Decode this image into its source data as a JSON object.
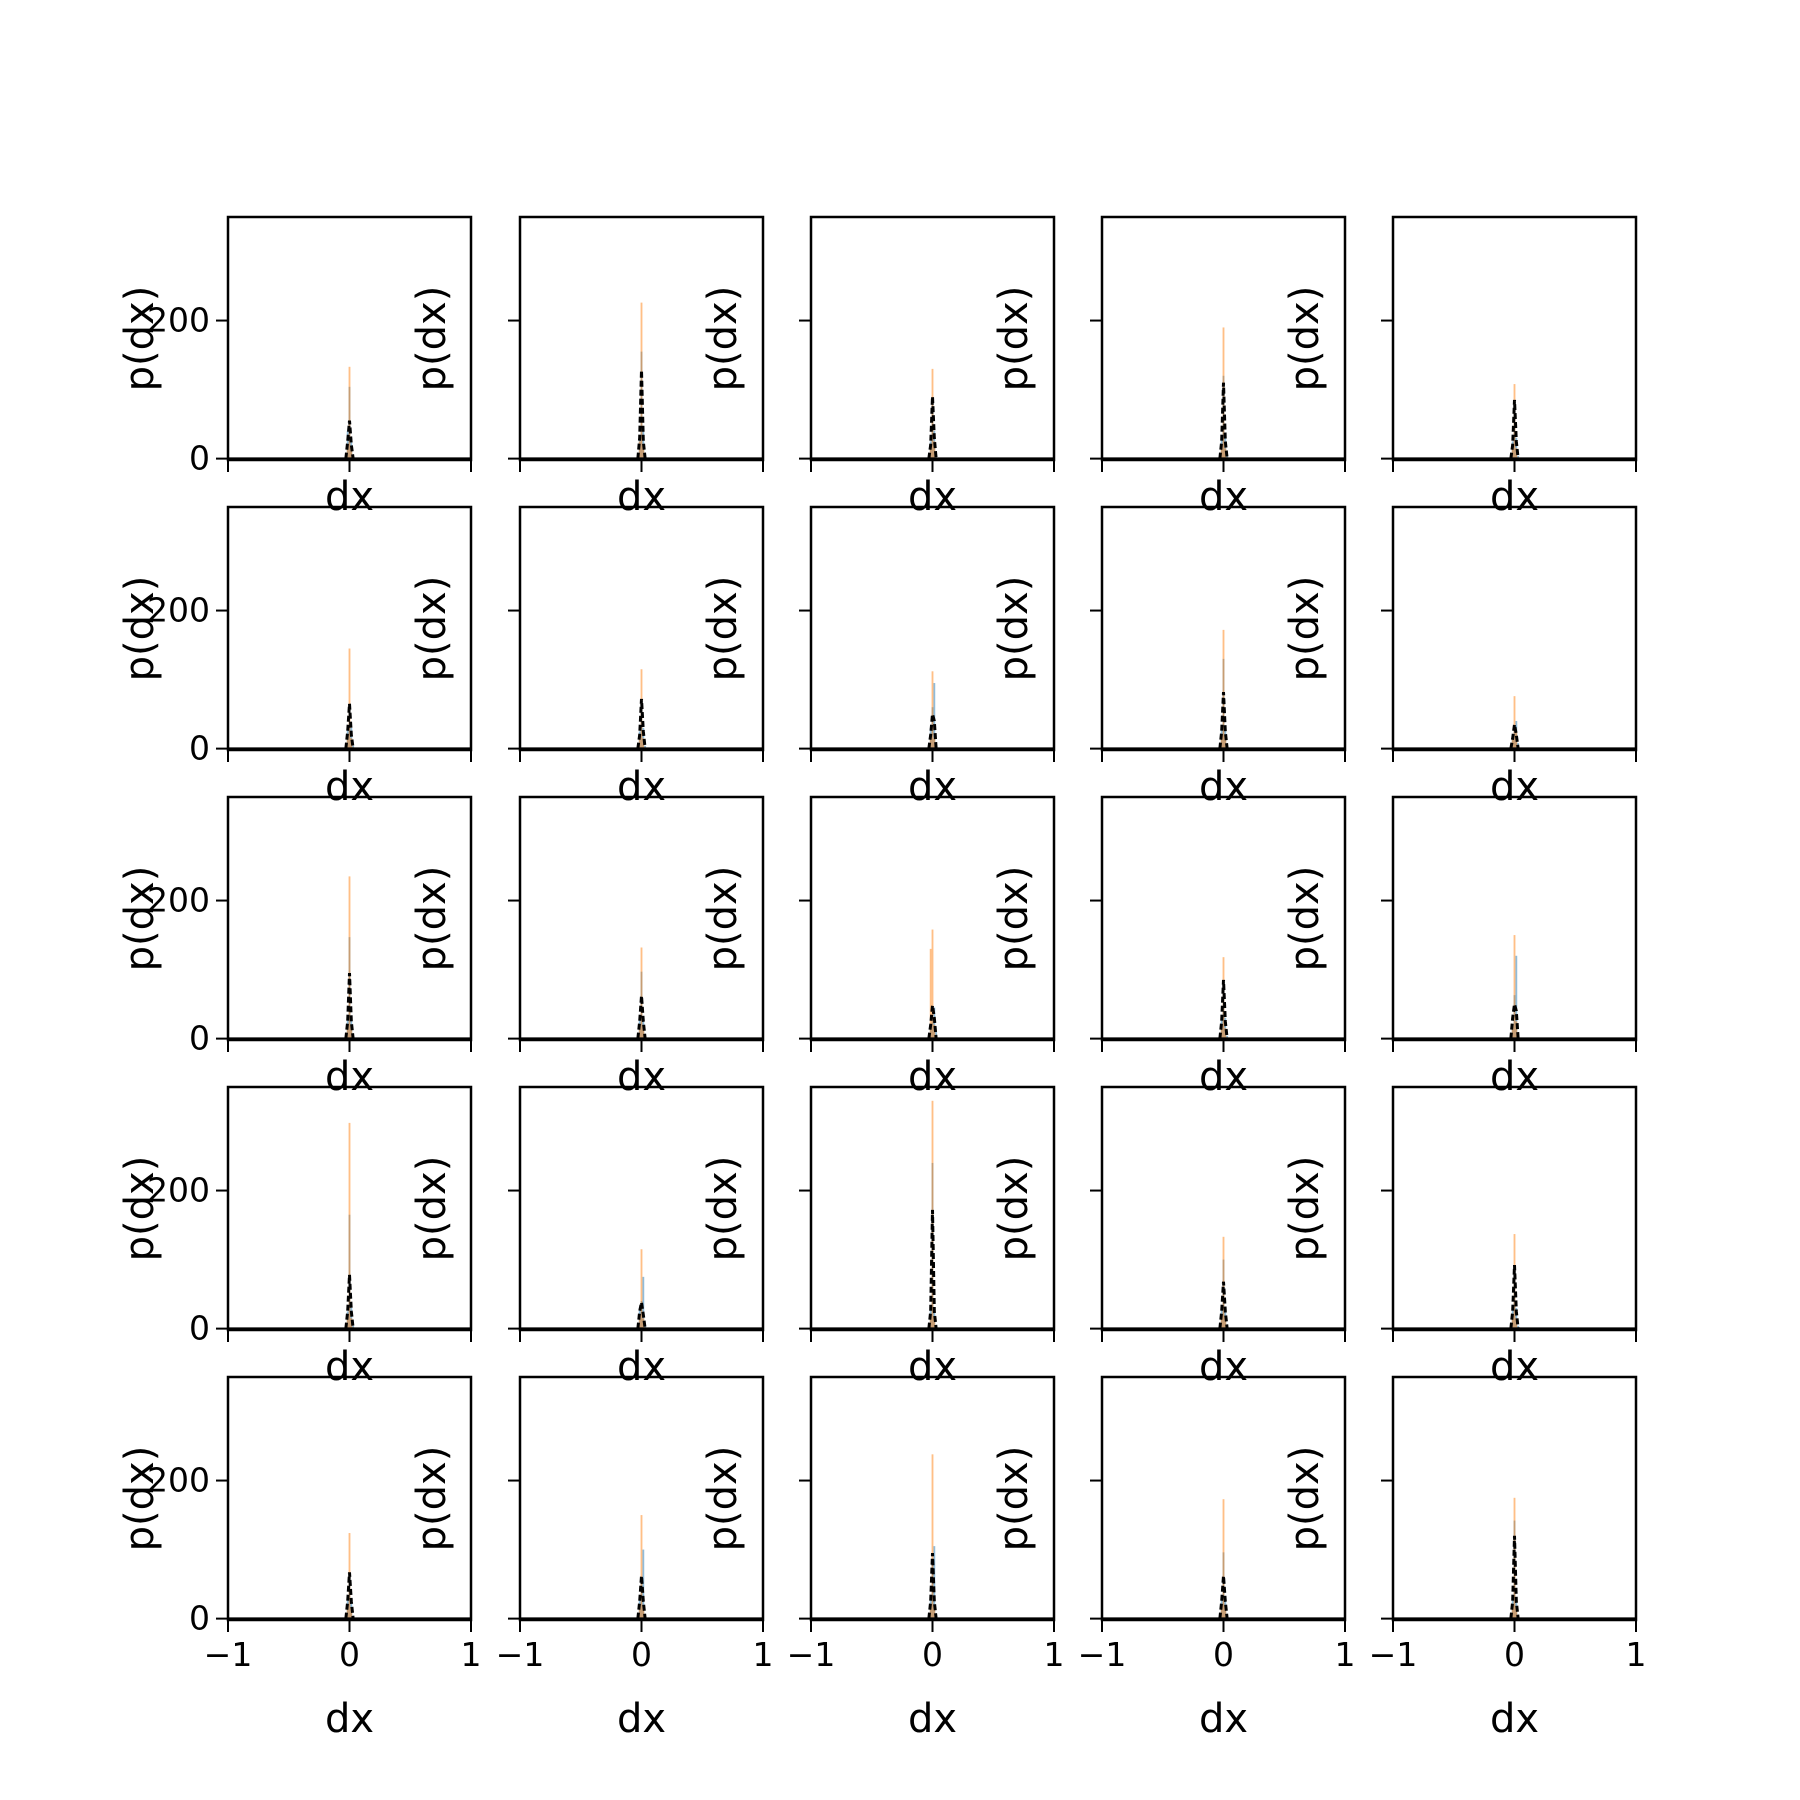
{
  "figure": {
    "rows": 5,
    "cols": 5,
    "background": "#ffffff"
  },
  "colors": {
    "hist_a": "#1f77b4",
    "hist_b": "#ff7f0e",
    "reference": "#000000",
    "axes": "#000000"
  },
  "chart_data": {
    "type": "bar",
    "description_of_layout": "5 x 5 grid of overlaid histograms with shared x and y axes",
    "xlabel": "dx",
    "ylabel": "p(dx)",
    "xlim": [
      -1,
      1
    ],
    "ylim": [
      -2,
      350
    ],
    "xticks": [
      -1,
      0,
      1
    ],
    "xtick_labels": [
      "−1",
      "0",
      "1"
    ],
    "yticks": [
      0,
      200
    ],
    "ytick_labels": [
      "0",
      "200"
    ],
    "series_style": [
      {
        "role": "hist_a",
        "color": "#1f77b4",
        "alpha": 0.5
      },
      {
        "role": "hist_b",
        "color": "#ff7f0e",
        "alpha": 0.5
      },
      {
        "role": "reference",
        "color": "#000000",
        "style": "dashed"
      }
    ],
    "panels": [
      {
        "row": 0,
        "col": 0,
        "a": [
          0,
          40,
          104,
          30,
          4
        ],
        "b": [
          0,
          20,
          133,
          15,
          0
        ],
        "ref": [
          0,
          25,
          55,
          20,
          0
        ]
      },
      {
        "row": 0,
        "col": 1,
        "a": [
          2,
          30,
          155,
          45,
          5
        ],
        "b": [
          2,
          25,
          226,
          20,
          2
        ],
        "ref": [
          0,
          30,
          128,
          25,
          0
        ]
      },
      {
        "row": 0,
        "col": 2,
        "a": [
          2,
          25,
          80,
          40,
          5
        ],
        "b": [
          2,
          20,
          130,
          25,
          2
        ],
        "ref": [
          0,
          20,
          90,
          30,
          0
        ]
      },
      {
        "row": 0,
        "col": 3,
        "a": [
          2,
          30,
          120,
          30,
          4
        ],
        "b": [
          2,
          20,
          190,
          15,
          2
        ],
        "ref": [
          0,
          25,
          110,
          25,
          0
        ]
      },
      {
        "row": 0,
        "col": 4,
        "a": [
          2,
          25,
          75,
          30,
          4
        ],
        "b": [
          2,
          20,
          108,
          15,
          2
        ],
        "ref": [
          0,
          20,
          85,
          25,
          0
        ]
      },
      {
        "row": 1,
        "col": 0,
        "a": [
          2,
          30,
          40,
          30,
          4
        ],
        "b": [
          2,
          20,
          145,
          15,
          2
        ],
        "ref": [
          0,
          25,
          65,
          20,
          0
        ]
      },
      {
        "row": 1,
        "col": 1,
        "a": [
          2,
          25,
          70,
          30,
          4
        ],
        "b": [
          2,
          20,
          115,
          15,
          2
        ],
        "ref": [
          0,
          20,
          72,
          25,
          0
        ]
      },
      {
        "row": 1,
        "col": 2,
        "a": [
          2,
          30,
          60,
          95,
          4
        ],
        "b": [
          2,
          20,
          112,
          15,
          2
        ],
        "ref": [
          0,
          20,
          50,
          40,
          0
        ]
      },
      {
        "row": 1,
        "col": 3,
        "a": [
          2,
          30,
          130,
          30,
          4
        ],
        "b": [
          2,
          20,
          172,
          15,
          2
        ],
        "ref": [
          0,
          25,
          82,
          25,
          0
        ]
      },
      {
        "row": 1,
        "col": 4,
        "a": [
          2,
          20,
          30,
          40,
          8
        ],
        "b": [
          2,
          20,
          76,
          25,
          2
        ],
        "ref": [
          0,
          15,
          35,
          20,
          0
        ]
      },
      {
        "row": 2,
        "col": 0,
        "a": [
          2,
          30,
          147,
          30,
          4
        ],
        "b": [
          2,
          20,
          235,
          15,
          2
        ],
        "ref": [
          0,
          25,
          95,
          25,
          0
        ]
      },
      {
        "row": 2,
        "col": 1,
        "a": [
          2,
          30,
          97,
          30,
          4
        ],
        "b": [
          2,
          20,
          132,
          15,
          2
        ],
        "ref": [
          0,
          25,
          62,
          25,
          0
        ]
      },
      {
        "row": 2,
        "col": 2,
        "a": [
          2,
          15,
          30,
          45,
          10
        ],
        "b": [
          2,
          130,
          158,
          20,
          2
        ],
        "ref": [
          0,
          20,
          48,
          30,
          0
        ]
      },
      {
        "row": 2,
        "col": 3,
        "a": [
          2,
          30,
          75,
          30,
          4
        ],
        "b": [
          2,
          20,
          118,
          15,
          2
        ],
        "ref": [
          0,
          25,
          85,
          25,
          0
        ]
      },
      {
        "row": 2,
        "col": 4,
        "a": [
          2,
          20,
          63,
          120,
          8
        ],
        "b": [
          2,
          20,
          150,
          25,
          2
        ],
        "ref": [
          0,
          30,
          50,
          40,
          0
        ]
      },
      {
        "row": 3,
        "col": 0,
        "a": [
          2,
          25,
          165,
          30,
          4
        ],
        "b": [
          2,
          20,
          298,
          15,
          2
        ],
        "ref": [
          0,
          25,
          78,
          25,
          0
        ]
      },
      {
        "row": 3,
        "col": 1,
        "a": [
          2,
          30,
          40,
          75,
          4
        ],
        "b": [
          2,
          20,
          115,
          15,
          2
        ],
        "ref": [
          0,
          25,
          38,
          20,
          0
        ]
      },
      {
        "row": 3,
        "col": 2,
        "a": [
          2,
          30,
          240,
          30,
          4
        ],
        "b": [
          2,
          20,
          330,
          15,
          2
        ],
        "ref": [
          0,
          25,
          172,
          25,
          0
        ]
      },
      {
        "row": 3,
        "col": 3,
        "a": [
          2,
          30,
          100,
          30,
          4
        ],
        "b": [
          2,
          20,
          133,
          15,
          2
        ],
        "ref": [
          0,
          25,
          68,
          25,
          0
        ]
      },
      {
        "row": 3,
        "col": 4,
        "a": [
          2,
          30,
          90,
          30,
          4
        ],
        "b": [
          2,
          20,
          137,
          15,
          2
        ],
        "ref": [
          0,
          25,
          92,
          25,
          0
        ]
      },
      {
        "row": 4,
        "col": 0,
        "a": [
          2,
          30,
          60,
          30,
          4
        ],
        "b": [
          2,
          20,
          124,
          15,
          2
        ],
        "ref": [
          0,
          25,
          67,
          25,
          0
        ]
      },
      {
        "row": 4,
        "col": 1,
        "a": [
          2,
          30,
          60,
          100,
          4
        ],
        "b": [
          2,
          20,
          150,
          15,
          2
        ],
        "ref": [
          0,
          25,
          62,
          25,
          0
        ]
      },
      {
        "row": 4,
        "col": 2,
        "a": [
          2,
          30,
          80,
          105,
          4
        ],
        "b": [
          2,
          20,
          238,
          15,
          2
        ],
        "ref": [
          0,
          25,
          95,
          25,
          0
        ]
      },
      {
        "row": 4,
        "col": 3,
        "a": [
          2,
          30,
          96,
          30,
          4
        ],
        "b": [
          2,
          20,
          173,
          15,
          2
        ],
        "ref": [
          0,
          25,
          62,
          25,
          0
        ]
      },
      {
        "row": 4,
        "col": 4,
        "a": [
          2,
          30,
          142,
          30,
          4
        ],
        "b": [
          2,
          20,
          175,
          15,
          2
        ],
        "ref": [
          0,
          25,
          120,
          25,
          0
        ]
      }
    ],
    "bin_centers": [
      -0.03,
      -0.015,
      0,
      0.015,
      0.03
    ]
  }
}
